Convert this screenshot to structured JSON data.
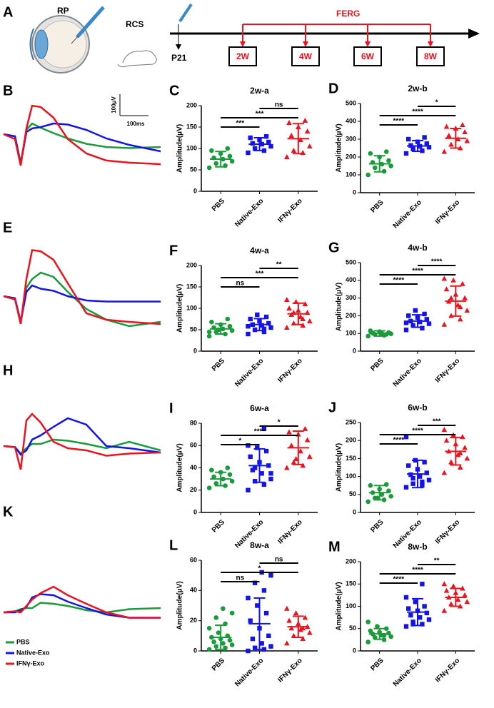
{
  "schematic": {
    "label": "A",
    "eye_label": "RP",
    "model_label": "RCS",
    "injection_label": "P21",
    "ferg_label": "FERG",
    "timepoints": [
      "2W",
      "4W",
      "6W",
      "8W"
    ]
  },
  "chart_data": [
    {
      "type": "erg",
      "label": "B",
      "scalebar": {
        "y": 100,
        "y_label": "100μV",
        "x": 100,
        "x_label": "100ms"
      },
      "x": [
        0,
        40,
        60,
        80,
        100,
        130,
        175,
        225,
        290,
        360,
        440,
        550
      ],
      "series": [
        {
          "color": "#1a9a3a",
          "values": [
            -10,
            -20,
            -145,
            10,
            40,
            20,
            -5,
            -30,
            -55,
            -70,
            -75,
            -70
          ]
        },
        {
          "color": "#1414e6",
          "values": [
            -10,
            -20,
            -150,
            0,
            17,
            23,
            40,
            35,
            10,
            -30,
            -60,
            -90
          ]
        },
        {
          "color": "#e8141e",
          "values": [
            -10,
            -33,
            -157,
            17,
            123,
            117,
            67,
            -33,
            -100,
            -133,
            -143,
            -150
          ]
        }
      ]
    },
    {
      "type": "erg",
      "label": "E",
      "x": [
        0,
        40,
        60,
        80,
        100,
        130,
        175,
        225,
        290,
        360,
        440,
        550
      ],
      "series": [
        {
          "color": "#1a9a3a",
          "values": [
            0,
            -10,
            -125,
            40,
            80,
            110,
            90,
            20,
            -60,
            -110,
            -140,
            -120
          ]
        },
        {
          "color": "#1414e6",
          "values": [
            0,
            -10,
            -120,
            20,
            50,
            35,
            25,
            0,
            -20,
            -25,
            -25,
            -25
          ]
        },
        {
          "color": "#e8141e",
          "values": [
            0,
            -15,
            -130,
            80,
            215,
            210,
            170,
            60,
            -80,
            -110,
            -120,
            -130
          ]
        }
      ]
    },
    {
      "type": "erg",
      "label": "H",
      "x": [
        0,
        40,
        60,
        80,
        100,
        130,
        175,
        225,
        290,
        360,
        440,
        550
      ],
      "series": [
        {
          "color": "#1a9a3a",
          "values": [
            0,
            -5,
            -35,
            -10,
            10,
            10,
            30,
            25,
            10,
            -10,
            20,
            -20
          ]
        },
        {
          "color": "#1414e6",
          "values": [
            0,
            -5,
            -40,
            -20,
            30,
            50,
            90,
            130,
            100,
            0,
            -10,
            -30
          ]
        },
        {
          "color": "#e8141e",
          "values": [
            0,
            -5,
            -110,
            120,
            150,
            110,
            20,
            -10,
            -20,
            -45,
            -35,
            -30
          ]
        }
      ]
    },
    {
      "type": "erg",
      "label": "K",
      "x": [
        0,
        40,
        60,
        80,
        100,
        130,
        175,
        225,
        290,
        360,
        440,
        550
      ],
      "series": [
        {
          "name": "PBS",
          "color": "#1a9a3a",
          "values": [
            0,
            5,
            15,
            20,
            20,
            45,
            40,
            30,
            10,
            0,
            15,
            20
          ]
        },
        {
          "name": "Native-Exo",
          "color": "#1414e6",
          "values": [
            0,
            0,
            10,
            25,
            70,
            85,
            80,
            50,
            20,
            -10,
            -25,
            -25
          ]
        },
        {
          "name": "IFNγ-Exo",
          "color": "#e8141e",
          "values": [
            0,
            5,
            0,
            30,
            60,
            90,
            120,
            80,
            40,
            0,
            -25,
            -25
          ]
        }
      ]
    },
    {
      "type": "dotplot",
      "label": "C",
      "title": "2w-a",
      "ylabel": "Amplitude(μV)",
      "ylim": [
        0,
        200
      ],
      "yticks": [
        0,
        50,
        100,
        150,
        200
      ],
      "categories": [
        "PBS",
        "Native-Exo",
        "IFNγ-Exo"
      ],
      "colors": [
        "#1a9a3a",
        "#1414e6",
        "#e8141e"
      ],
      "markers": [
        "circle",
        "square",
        "triangle"
      ],
      "series": [
        [
          55,
          60,
          65,
          70,
          75,
          78,
          82,
          88,
          95,
          100
        ],
        [
          90,
          95,
          100,
          105,
          110,
          112,
          115,
          120,
          125,
          128
        ],
        [
          80,
          90,
          95,
          105,
          120,
          130,
          140,
          150,
          160,
          165
        ]
      ],
      "means": [
        75,
        110,
        123
      ],
      "sd": [
        18,
        15,
        35
      ],
      "comparisons": [
        {
          "from": "Native-Exo",
          "to": "IFNγ-Exo",
          "label": "ns"
        },
        {
          "from": "PBS",
          "to": "IFNγ-Exo",
          "label": "***"
        },
        {
          "from": "PBS",
          "to": "Native-Exo",
          "label": "***"
        }
      ]
    },
    {
      "type": "dotplot",
      "label": "D",
      "title": "2w-b",
      "ylabel": "Amplitude(μV)",
      "ylim": [
        0,
        500
      ],
      "yticks": [
        0,
        100,
        200,
        300,
        400,
        500
      ],
      "categories": [
        "PBS",
        "Native-Exo",
        "IFNγ-Exo"
      ],
      "colors": [
        "#1a9a3a",
        "#1414e6",
        "#e8141e"
      ],
      "markers": [
        "circle",
        "square",
        "triangle"
      ],
      "series": [
        [
          100,
          120,
          140,
          150,
          160,
          170,
          180,
          200,
          220,
          230
        ],
        [
          220,
          235,
          245,
          255,
          260,
          265,
          275,
          285,
          300,
          310
        ],
        [
          230,
          250,
          270,
          290,
          300,
          320,
          340,
          360,
          370,
          380
        ]
      ],
      "means": [
        162,
        262,
        305
      ],
      "sd": [
        45,
        30,
        55
      ],
      "comparisons": [
        {
          "from": "Native-Exo",
          "to": "IFNγ-Exo",
          "label": "*"
        },
        {
          "from": "PBS",
          "to": "IFNγ-Exo",
          "label": "****"
        },
        {
          "from": "PBS",
          "to": "Native-Exo",
          "label": "****"
        }
      ]
    },
    {
      "type": "dotplot",
      "label": "F",
      "title": "4w-a",
      "ylabel": "Amplitude(μV)",
      "ylim": [
        0,
        200
      ],
      "yticks": [
        0,
        50,
        100,
        150,
        200
      ],
      "categories": [
        "PBS",
        "Native-Exo",
        "IFNγ-Exo"
      ],
      "colors": [
        "#1a9a3a",
        "#1414e6",
        "#e8141e"
      ],
      "markers": [
        "circle",
        "square",
        "triangle"
      ],
      "series": [
        [
          35,
          40,
          45,
          48,
          52,
          55,
          58,
          62,
          68,
          75,
          50,
          45
        ],
        [
          40,
          45,
          50,
          55,
          60,
          62,
          65,
          70,
          75,
          80,
          85,
          58,
          52
        ],
        [
          55,
          60,
          65,
          70,
          80,
          85,
          90,
          95,
          100,
          110,
          115,
          120,
          75,
          90
        ]
      ],
      "means": [
        52,
        62,
        87
      ],
      "sd": [
        12,
        14,
        25
      ],
      "comparisons": [
        {
          "from": "Native-Exo",
          "to": "IFNγ-Exo",
          "label": "**"
        },
        {
          "from": "PBS",
          "to": "IFNγ-Exo",
          "label": "***"
        },
        {
          "from": "PBS",
          "to": "Native-Exo",
          "label": "ns"
        }
      ]
    },
    {
      "type": "dotplot",
      "label": "G",
      "title": "4w-b",
      "ylabel": "Amplitude(μV)",
      "ylim": [
        0,
        500
      ],
      "yticks": [
        0,
        100,
        200,
        300,
        400,
        500
      ],
      "categories": [
        "PBS",
        "Native-Exo",
        "IFNγ-Exo"
      ],
      "colors": [
        "#1a9a3a",
        "#1414e6",
        "#e8141e"
      ],
      "markers": [
        "circle",
        "square",
        "triangle"
      ],
      "series": [
        [
          85,
          90,
          95,
          98,
          100,
          102,
          105,
          110,
          115,
          95
        ],
        [
          120,
          130,
          145,
          155,
          165,
          170,
          180,
          190,
          200,
          210,
          230,
          160
        ],
        [
          150,
          180,
          200,
          230,
          260,
          280,
          300,
          320,
          350,
          380,
          400,
          410,
          250,
          300
        ]
      ],
      "means": [
        100,
        170,
        283
      ],
      "sd": [
        15,
        35,
        85
      ],
      "comparisons": [
        {
          "from": "Native-Exo",
          "to": "IFNγ-Exo",
          "label": "****"
        },
        {
          "from": "PBS",
          "to": "IFNγ-Exo",
          "label": "****"
        },
        {
          "from": "PBS",
          "to": "Native-Exo",
          "label": "****"
        }
      ]
    },
    {
      "type": "dotplot",
      "label": "I",
      "title": "6w-a",
      "ylabel": "Amplitude(μV)",
      "ylim": [
        0,
        80
      ],
      "yticks": [
        0,
        20,
        40,
        60,
        80
      ],
      "categories": [
        "PBS",
        "Native-Exo",
        "IFNγ-Exo"
      ],
      "colors": [
        "#1a9a3a",
        "#1414e6",
        "#e8141e"
      ],
      "markers": [
        "circle",
        "square",
        "triangle"
      ],
      "series": [
        [
          22,
          24,
          26,
          28,
          30,
          32,
          34,
          36,
          38,
          40
        ],
        [
          20,
          25,
          28,
          30,
          35,
          38,
          42,
          45,
          50,
          55,
          58,
          60,
          75,
          40,
          35
        ],
        [
          40,
          42,
          45,
          50,
          55,
          60,
          65,
          70,
          72,
          75,
          48
        ]
      ],
      "means": [
        30,
        42,
        58
      ],
      "sd": [
        6,
        15,
        15
      ],
      "comparisons": [
        {
          "from": "Native-Exo",
          "to": "IFNγ-Exo",
          "label": "*"
        },
        {
          "from": "PBS",
          "to": "IFNγ-Exo",
          "label": "****"
        },
        {
          "from": "PBS",
          "to": "Native-Exo",
          "label": "*"
        }
      ]
    },
    {
      "type": "dotplot",
      "label": "J",
      "title": "6w-b",
      "ylabel": "Amplitude(μV)",
      "ylim": [
        0,
        250
      ],
      "yticks": [
        0,
        50,
        100,
        150,
        200,
        250
      ],
      "categories": [
        "PBS",
        "Native-Exo",
        "IFNγ-Exo"
      ],
      "colors": [
        "#1a9a3a",
        "#1414e6",
        "#e8141e"
      ],
      "markers": [
        "circle",
        "square",
        "triangle"
      ],
      "series": [
        [
          30,
          35,
          40,
          45,
          50,
          55,
          60,
          65,
          75,
          78,
          40
        ],
        [
          70,
          75,
          80,
          90,
          100,
          105,
          110,
          120,
          130,
          140,
          145,
          210,
          85,
          95
        ],
        [
          110,
          125,
          140,
          150,
          160,
          170,
          180,
          190,
          200,
          210,
          215,
          230,
          165
        ]
      ],
      "means": [
        55,
        107,
        170
      ],
      "sd": [
        20,
        38,
        38
      ],
      "comparisons": [
        {
          "from": "Native-Exo",
          "to": "IFNγ-Exo",
          "label": "***"
        },
        {
          "from": "PBS",
          "to": "IFNγ-Exo",
          "label": "****"
        },
        {
          "from": "PBS",
          "to": "Native-Exo",
          "label": "****"
        }
      ]
    },
    {
      "type": "dotplot",
      "label": "L",
      "title": "8w-a",
      "ylabel": "Amplitude(μV)",
      "ylim": [
        0,
        60
      ],
      "yticks": [
        0,
        20,
        40,
        60
      ],
      "categories": [
        "PBS",
        "Native-Exo",
        "IFNγ-Exo"
      ],
      "colors": [
        "#1a9a3a",
        "#1414e6",
        "#e8141e"
      ],
      "markers": [
        "circle",
        "square",
        "triangle"
      ],
      "series": [
        [
          1,
          2,
          3,
          4,
          5,
          6,
          7,
          8,
          9,
          10,
          12,
          15,
          18,
          22,
          25,
          28
        ],
        [
          0,
          1,
          2,
          3,
          5,
          8,
          10,
          15,
          20,
          25,
          30,
          35,
          40,
          45,
          50,
          52
        ],
        [
          5,
          8,
          10,
          12,
          14,
          15,
          16,
          18,
          20,
          22,
          25,
          28,
          15
        ]
      ],
      "means": [
        9,
        18,
        16
      ],
      "sd": [
        8,
        17,
        7
      ],
      "comparisons": [
        {
          "from": "Native-Exo",
          "to": "IFNγ-Exo",
          "label": "ns"
        },
        {
          "from": "PBS",
          "to": "IFNγ-Exo",
          "label": "*"
        },
        {
          "from": "PBS",
          "to": "Native-Exo",
          "label": "ns"
        }
      ]
    },
    {
      "type": "dotplot",
      "label": "M",
      "title": "8w-b",
      "ylabel": "Amplitude(μV)",
      "ylim": [
        0,
        200
      ],
      "yticks": [
        0,
        50,
        100,
        150,
        200
      ],
      "categories": [
        "PBS",
        "Native-Exo",
        "IFNγ-Exo"
      ],
      "colors": [
        "#1a9a3a",
        "#1414e6",
        "#e8141e"
      ],
      "markers": [
        "circle",
        "square",
        "triangle"
      ],
      "series": [
        [
          20,
          25,
          30,
          32,
          35,
          38,
          40,
          42,
          45,
          50,
          55,
          65,
          35
        ],
        [
          55,
          60,
          65,
          70,
          75,
          80,
          85,
          90,
          95,
          100,
          110,
          120,
          150,
          60
        ],
        [
          90,
          100,
          105,
          110,
          115,
          120,
          125,
          130,
          135,
          140,
          145,
          150
        ]
      ],
      "means": [
        38,
        87,
        120
      ],
      "sd": [
        12,
        30,
        20
      ],
      "comparisons": [
        {
          "from": "Native-Exo",
          "to": "IFNγ-Exo",
          "label": "**"
        },
        {
          "from": "PBS",
          "to": "IFNγ-Exo",
          "label": "****"
        },
        {
          "from": "PBS",
          "to": "Native-Exo",
          "label": "****"
        }
      ]
    }
  ]
}
